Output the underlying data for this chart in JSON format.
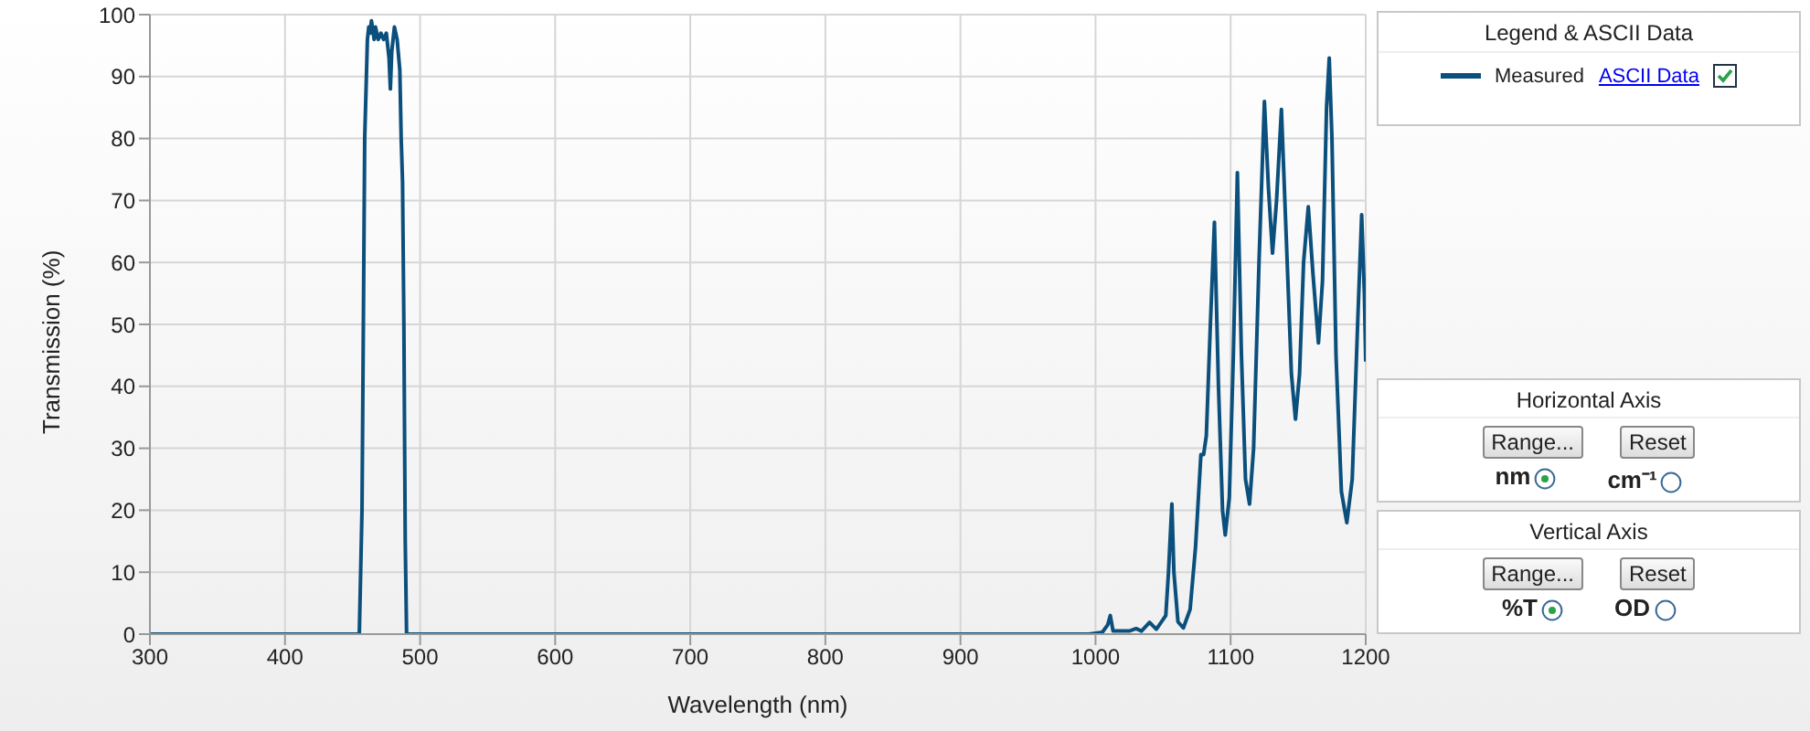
{
  "chart_data": {
    "type": "line",
    "xlabel": "Wavelength (nm)",
    "ylabel": "Transmission (%)",
    "legend_title": "Legend & ASCII Data",
    "legend": "right",
    "grid": true,
    "marker": "none",
    "line_style": "solid",
    "xlim": [
      300,
      1200
    ],
    "xticks": [
      300,
      400,
      500,
      600,
      700,
      800,
      900,
      1000,
      1100,
      1200
    ],
    "ylim": [
      0,
      100
    ],
    "yticks": [
      0,
      10,
      20,
      30,
      40,
      50,
      60,
      70,
      80,
      90,
      100
    ],
    "annotations": [
      "ASCII Data",
      "Horizontal Axis",
      "Range...",
      "Reset",
      "nm",
      "cm⁻¹",
      "Vertical Axis",
      "Range...",
      "Reset",
      "%T",
      "OD"
    ],
    "series": [
      {
        "name": "Measured",
        "color": "#0b4f7c",
        "x": [
          300,
          455,
          457,
          459,
          461,
          462,
          463,
          464,
          466,
          467,
          469,
          471,
          473,
          475,
          477,
          478,
          479,
          481,
          483,
          485,
          486,
          487,
          488,
          489,
          490,
          995,
          1005,
          1009,
          1010.9,
          1013,
          1025,
          1030,
          1034,
          1040,
          1045,
          1052,
          1054,
          1056.5,
          1058,
          1061,
          1065,
          1070,
          1074,
          1078,
          1080,
          1082,
          1085,
          1088,
          1091,
          1094,
          1096,
          1099,
          1102,
          1105,
          1108,
          1111,
          1114,
          1117,
          1121,
          1125,
          1128,
          1131,
          1134,
          1137.6,
          1141,
          1145,
          1148,
          1151,
          1154,
          1157.5,
          1161,
          1165,
          1168,
          1171,
          1173,
          1175,
          1178,
          1182,
          1186,
          1190,
          1194,
          1197,
          1199,
          1200
        ],
        "values": [
          0,
          0,
          20,
          80,
          96,
          98,
          97,
          99,
          96,
          98,
          96,
          97,
          96,
          97,
          93,
          88,
          94,
          98,
          96,
          91,
          80,
          73,
          50,
          15,
          0,
          0,
          0.3,
          1.5,
          3,
          0.5,
          0.5,
          0.9,
          0.5,
          1.9,
          0.8,
          3,
          10,
          21,
          10,
          2,
          1,
          4,
          14,
          29,
          29,
          32,
          50,
          66.5,
          40,
          20,
          16,
          22,
          45,
          74.5,
          45,
          25,
          21,
          30,
          60,
          86,
          72,
          61.5,
          70,
          84.7,
          65,
          42,
          34.7,
          42,
          60,
          69,
          58,
          47,
          57,
          85,
          93,
          80,
          45,
          23,
          18,
          25,
          50,
          67.7,
          55,
          44
        ]
      }
    ]
  }
}
